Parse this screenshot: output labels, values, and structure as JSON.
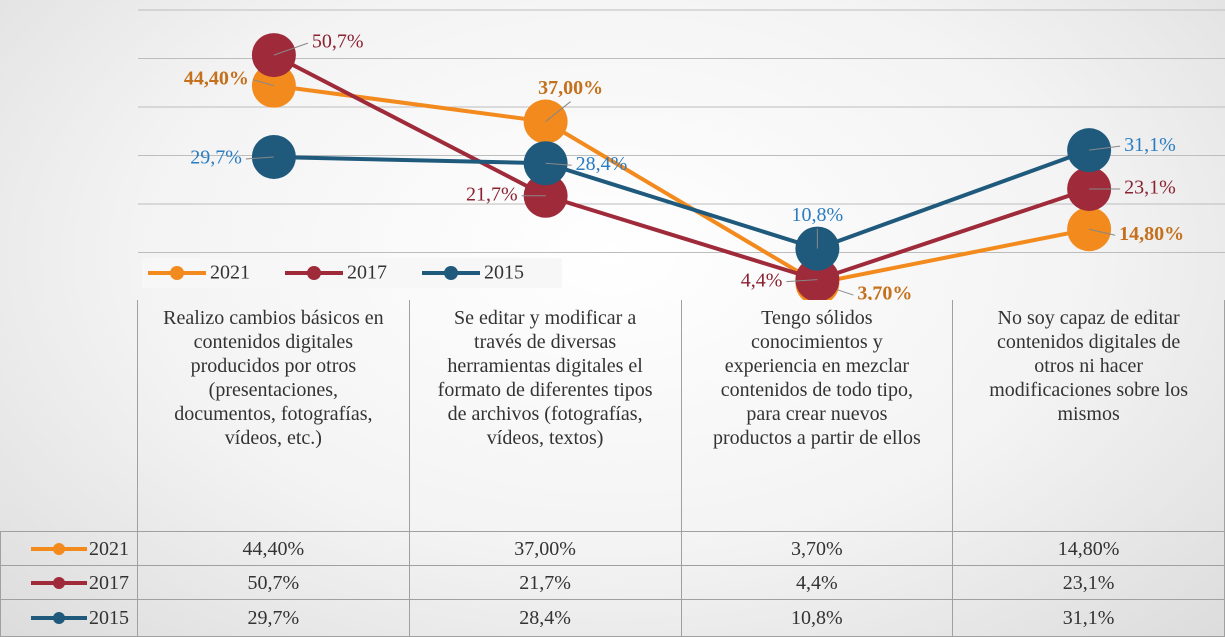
{
  "chart_data": {
    "type": "line",
    "categories": [
      "Realizo cambios básicos en contenidos digitales producidos por otros (presentaciones, documentos, fotografías, vídeos, etc.)",
      "Se editar y modificar a través de diversas herramientas digitales el formato de diferentes tipos de archivos (fotografías, vídeos, textos)",
      "Tengo sólidos conocimientos y experiencia en mezclar contenidos de todo tipo, para crear nuevos productos a partir de ellos",
      "No soy capaz de editar contenidos digitales de otros ni hacer modificaciones sobre los mismos"
    ],
    "series": [
      {
        "name": "2021",
        "color": "#f28a1e",
        "label_color": "#c4701c",
        "values": [
          44.4,
          37.0,
          3.7,
          14.8
        ],
        "value_labels": [
          "44,40%",
          "37,00%",
          "3,70%",
          "14,80%"
        ]
      },
      {
        "name": "2017",
        "color": "#9e2a3a",
        "label_color": "#8a2232",
        "values": [
          50.7,
          21.7,
          4.4,
          23.1
        ],
        "value_labels": [
          "50,7%",
          "21,7%",
          "4,4%",
          "23,1%"
        ]
      },
      {
        "name": "2015",
        "color": "#1f5a7d",
        "label_color": "#2a7cc0",
        "values": [
          29.7,
          28.4,
          10.8,
          31.1
        ],
        "value_labels": [
          "29,7%",
          "28,4%",
          "10,8%",
          "31,1%"
        ]
      }
    ],
    "ylim": [
      0,
      60
    ],
    "yticks": [
      0,
      10,
      20,
      30,
      40,
      50,
      60
    ],
    "grid": true,
    "legend": "bottom-left"
  }
}
